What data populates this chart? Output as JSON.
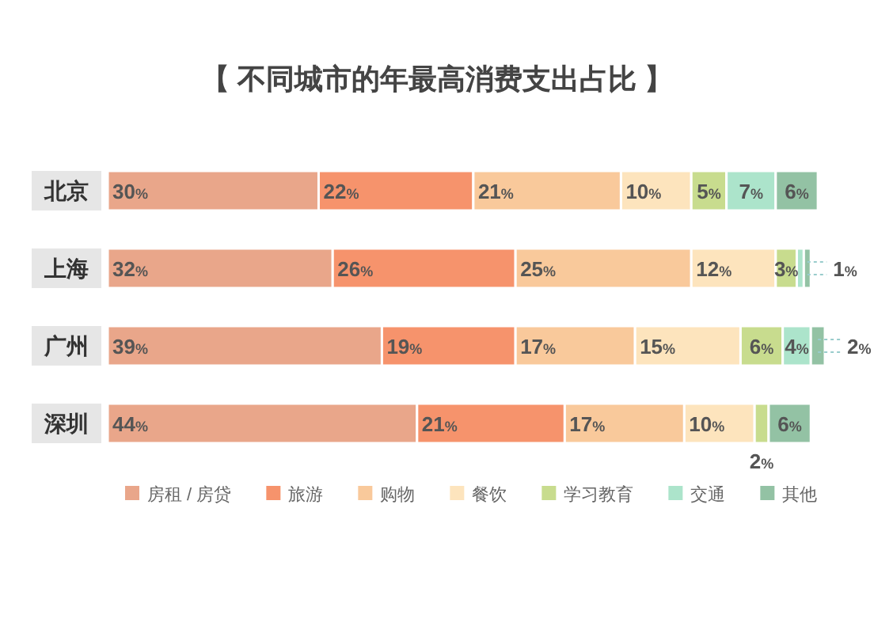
{
  "chart_data": {
    "type": "bar",
    "orientation": "horizontal",
    "stacked": true,
    "legend": "bottom",
    "title": "【 不同城市的年最高消费支出占比 】",
    "categories": [
      "北京",
      "上海",
      "广州",
      "深圳"
    ],
    "series": [
      {
        "name": "房租 / 房贷",
        "color": "#e9a68a",
        "values": [
          30,
          32,
          39,
          44
        ],
        "value_labels": [
          "30%",
          "32%",
          "39%",
          "44%"
        ]
      },
      {
        "name": "旅游",
        "color": "#f6936c",
        "values": [
          22,
          26,
          19,
          21
        ],
        "value_labels": [
          "22%",
          "26%",
          "19%",
          "21%"
        ]
      },
      {
        "name": "购物",
        "color": "#f9c99b",
        "values": [
          21,
          25,
          17,
          17
        ],
        "value_labels": [
          "21%",
          "25%",
          "17%",
          "17%"
        ]
      },
      {
        "name": "餐饮",
        "color": "#fde4bd",
        "values": [
          10,
          12,
          15,
          10
        ],
        "value_labels": [
          "10%",
          "12%",
          "15%",
          "10%"
        ]
      },
      {
        "name": "学习教育",
        "color": "#c8dc8e",
        "values": [
          5,
          3,
          6,
          2
        ],
        "value_labels": [
          "5%",
          "3%",
          "6%",
          "2%"
        ]
      },
      {
        "name": "交通",
        "color": "#ace4cb",
        "values": [
          7,
          1,
          4,
          null
        ],
        "value_labels": [
          "7%",
          null,
          "4%",
          null
        ]
      },
      {
        "name": "其他",
        "color": "#93c2a4",
        "values": [
          6,
          1,
          2,
          6
        ],
        "value_labels": [
          "6%",
          "1%",
          "2%",
          "6%"
        ]
      }
    ]
  }
}
